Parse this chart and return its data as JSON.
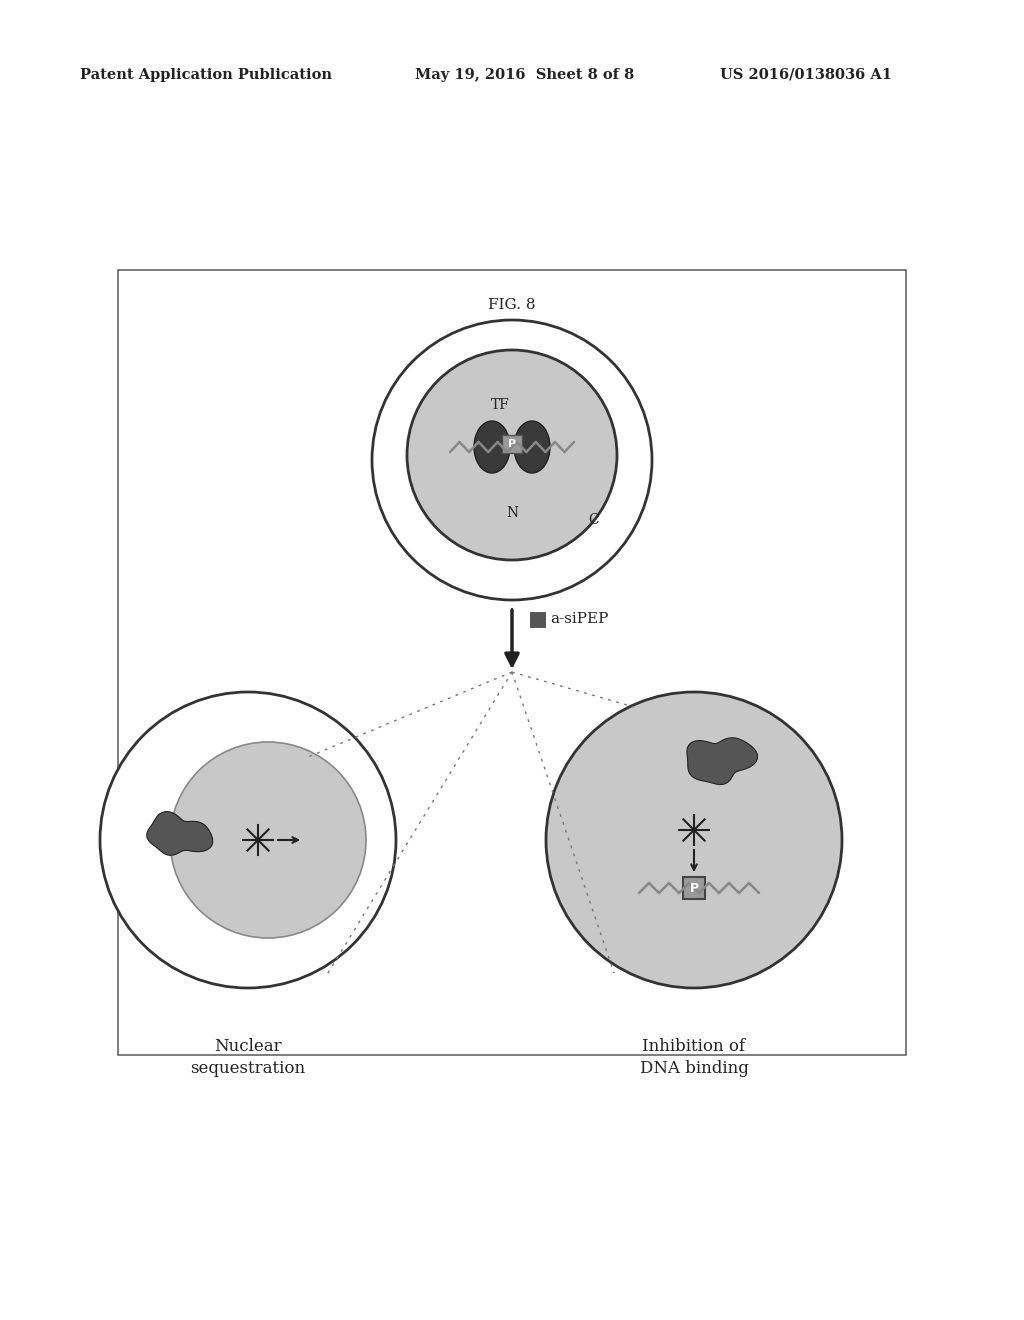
{
  "bg_color": "#ffffff",
  "header_left": "Patent Application Publication",
  "header_mid": "May 19, 2016  Sheet 8 of 8",
  "header_right": "US 2016/0138036 A1",
  "fig_label": "FIG. 8",
  "arrow_label": "a-siPEP",
  "label_left": "Nuclear\nsequestration",
  "label_right": "Inhibition of\nDNA binding",
  "nucleus_fill": "#c8c8c8",
  "cell_fill_white": "#f0f0f0",
  "dark_protein": "#555555",
  "darker_protein": "#444444"
}
